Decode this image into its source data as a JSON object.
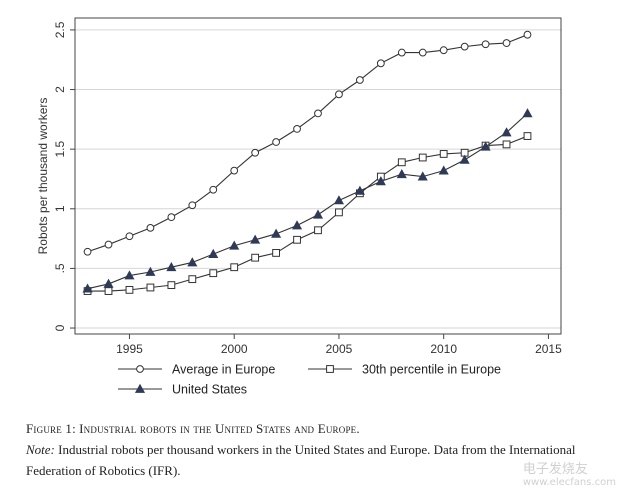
{
  "chart_data": {
    "type": "line",
    "title": "",
    "xlabel": "",
    "ylabel": "Robots per thousand workers",
    "xlim": [
      1992.4,
      2015.6
    ],
    "ylim": [
      -0.05,
      2.6
    ],
    "xticks": [
      1995,
      2000,
      2005,
      2010,
      2015
    ],
    "xtick_labels": [
      "1995",
      "2000",
      "2005",
      "2010",
      "2015"
    ],
    "yticks": [
      0,
      0.5,
      1,
      1.5,
      2,
      2.5
    ],
    "ytick_labels": [
      "0",
      ".5",
      "1",
      "1.5",
      "2",
      "2.5"
    ],
    "grid": true,
    "x": [
      1993,
      1994,
      1995,
      1996,
      1997,
      1998,
      1999,
      2000,
      2001,
      2002,
      2003,
      2004,
      2005,
      2006,
      2007,
      2008,
      2009,
      2010,
      2011,
      2012,
      2013,
      2014
    ],
    "series": [
      {
        "name": "Average in Europe",
        "marker": "circle",
        "values": [
          0.64,
          0.7,
          0.77,
          0.84,
          0.93,
          1.03,
          1.16,
          1.32,
          1.47,
          1.56,
          1.67,
          1.8,
          1.96,
          2.08,
          2.22,
          2.31,
          2.31,
          2.33,
          2.36,
          2.38,
          2.39,
          2.46
        ]
      },
      {
        "name": "30th percentile in Europe",
        "marker": "square",
        "values": [
          0.31,
          0.31,
          0.32,
          0.34,
          0.36,
          0.41,
          0.46,
          0.51,
          0.59,
          0.63,
          0.74,
          0.82,
          0.97,
          1.13,
          1.27,
          1.39,
          1.43,
          1.46,
          1.47,
          1.53,
          1.54,
          1.61
        ]
      },
      {
        "name": "United States",
        "marker": "triangle",
        "values": [
          0.33,
          0.37,
          0.44,
          0.47,
          0.51,
          0.55,
          0.62,
          0.69,
          0.74,
          0.79,
          0.86,
          0.95,
          1.07,
          1.15,
          1.23,
          1.29,
          1.27,
          1.32,
          1.41,
          1.52,
          1.64,
          1.8
        ]
      }
    ],
    "legend_position": "bottom"
  },
  "caption": {
    "figure_label": "Figure 1:",
    "figure_title": "Industrial robots in the United States and Europe.",
    "note_label": "Note:",
    "note_text": "Industrial robots per thousand workers in the United States and Europe. Data from the International Federation of Robotics (IFR)."
  },
  "watermark": {
    "text": "电子发烧友",
    "url": "www.elecfans.com"
  }
}
